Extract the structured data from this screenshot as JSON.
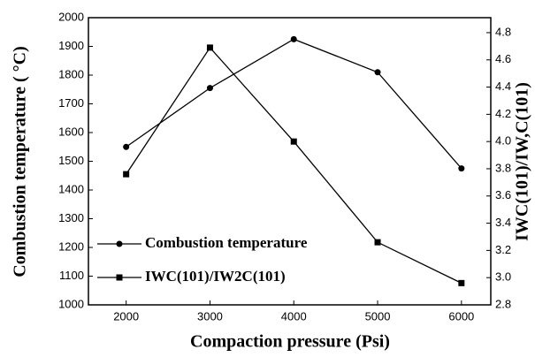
{
  "chart_data": {
    "type": "line",
    "xlabel": "Compaction pressure (Psi)",
    "ylabel": "Combustion temperature ( °C)",
    "y2label": "IWC(101)/IW,C(101)",
    "x": [
      2000,
      3000,
      4000,
      5000,
      6000
    ],
    "xlim": [
      1550,
      6350
    ],
    "xticks": [
      2000,
      3000,
      4000,
      5000,
      6000
    ],
    "ylim": [
      1000,
      2000
    ],
    "yticks": [
      1000,
      1100,
      1200,
      1300,
      1400,
      1500,
      1600,
      1700,
      1800,
      1900,
      2000
    ],
    "y2lim": [
      2.8,
      4.91
    ],
    "y2ticks": [
      {
        "value": 2.8,
        "label": "2.8"
      },
      {
        "value": 3.0,
        "label": "3.0"
      },
      {
        "value": 3.2,
        "label": "3.2"
      },
      {
        "value": 3.4,
        "label": "3.4"
      },
      {
        "value": 3.6,
        "label": "3.6"
      },
      {
        "value": 3.8,
        "label": "3.8"
      },
      {
        "value": 4.0,
        "label": "4.0"
      },
      {
        "value": 4.2,
        "label": "4.2"
      },
      {
        "value": 4.4,
        "label": "4.4"
      },
      {
        "value": 4.6,
        "label": "4.6"
      },
      {
        "value": 4.8,
        "label": "4.8"
      }
    ],
    "series": [
      {
        "name": "Combustion temperature",
        "color": "#000000",
        "marker": "circle",
        "values": [
          1550,
          1755,
          1925,
          1810,
          1475
        ]
      },
      {
        "name": "IWC(101)/IW2C(101)",
        "color": "#000000",
        "marker": "square",
        "axis": "y2",
        "values": [
          3.76,
          4.69,
          4.0,
          3.26,
          2.96
        ]
      }
    ]
  }
}
